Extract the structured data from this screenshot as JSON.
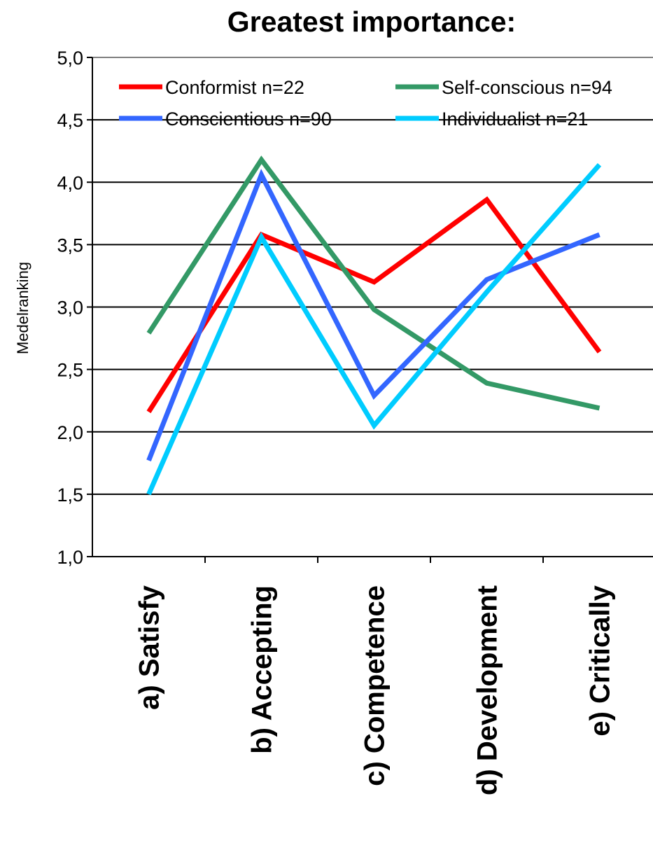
{
  "chart_data": {
    "type": "line",
    "title": "Greatest importance:",
    "xlabel": "",
    "ylabel": "Medelranking",
    "ylim": [
      1.0,
      5.0
    ],
    "ytick_step": 0.5,
    "yticks": [
      "1,0",
      "1,5",
      "2,0",
      "2,5",
      "3,0",
      "3,5",
      "4,0",
      "4,5",
      "5,0"
    ],
    "grid": true,
    "legend_position": "top",
    "categories": [
      "a)  Satisfy",
      "b)  Accepting",
      "c)  Competence",
      "d)  Development",
      "e)  Critically"
    ],
    "series": [
      {
        "name": "Conformist n=22",
        "color": "#ff0000",
        "values": [
          2.16,
          3.58,
          3.2,
          3.86,
          2.64
        ]
      },
      {
        "name": "Self-conscious n=94",
        "color": "#339966",
        "values": [
          2.79,
          4.18,
          2.98,
          2.39,
          2.19
        ]
      },
      {
        "name": "Conscientious n=90",
        "color": "#3366ff",
        "values": [
          1.77,
          4.06,
          2.29,
          3.22,
          3.58
        ]
      },
      {
        "name": "Individualist n=21",
        "color": "#00ccff",
        "values": [
          1.5,
          3.56,
          2.05,
          3.12,
          4.14
        ]
      }
    ]
  }
}
